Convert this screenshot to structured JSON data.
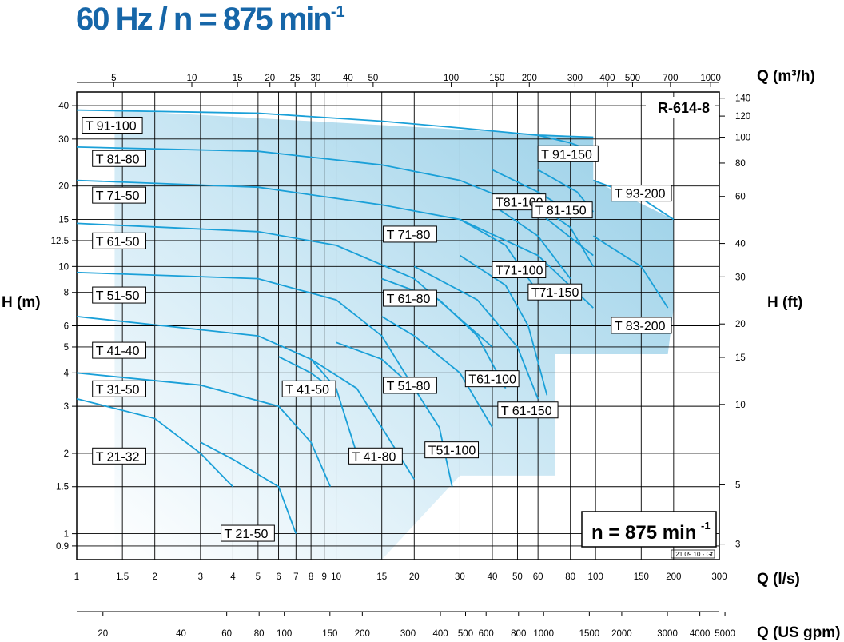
{
  "title": {
    "main": "60 Hz / n = 875 min",
    "sup": "-1"
  },
  "chart_data": {
    "type": "line",
    "code": "R-614-8",
    "speed_box": {
      "main": "n = 875 min",
      "sup": "-1"
    },
    "stamp": "21.09.10 - Gt",
    "x_axis": {
      "label": "Q (l/s)",
      "scale": "log",
      "range": [
        1,
        300
      ],
      "ticks": [
        1,
        1.5,
        2,
        3,
        4,
        5,
        6,
        7,
        8,
        9,
        10,
        15,
        20,
        30,
        40,
        50,
        60,
        80,
        100,
        150,
        200,
        300
      ]
    },
    "x_axis_m3h": {
      "label": "Q (m³/h)",
      "ticks": [
        5,
        10,
        15,
        20,
        25,
        30,
        40,
        50,
        100,
        150,
        200,
        300,
        400,
        500,
        700,
        1000
      ]
    },
    "x_axis_usgpm": {
      "label": "Q (US gpm)",
      "ticks": [
        20,
        40,
        60,
        80,
        100,
        150,
        200,
        300,
        400,
        500,
        600,
        800,
        1000,
        1500,
        2000,
        3000,
        4000,
        5000
      ]
    },
    "y_axis": {
      "label": "H (m)",
      "scale": "log",
      "range": [
        0.8,
        45
      ],
      "ticks": [
        0.9,
        1,
        1.5,
        2,
        3,
        4,
        5,
        6,
        8,
        10,
        12.5,
        15,
        20,
        30,
        40
      ]
    },
    "y_axis_ft": {
      "label": "H (ft)",
      "ticks": [
        3,
        5,
        10,
        15,
        20,
        30,
        40,
        60,
        80,
        100,
        120,
        140
      ]
    },
    "series": [
      {
        "name": "T 91-100",
        "points": [
          [
            1,
            38.5
          ],
          [
            5,
            37.5
          ],
          [
            15,
            35
          ],
          [
            30,
            33
          ],
          [
            60,
            31
          ],
          [
            98,
            30.5
          ]
        ]
      },
      {
        "name": "T 81-80",
        "points": [
          [
            1,
            28
          ],
          [
            5,
            27
          ],
          [
            15,
            24
          ],
          [
            30,
            21
          ],
          [
            60,
            16
          ],
          [
            98,
            11
          ]
        ]
      },
      {
        "name": "T 71-50",
        "points": [
          [
            1,
            21
          ],
          [
            5,
            19.8
          ],
          [
            15,
            17
          ],
          [
            30,
            15
          ],
          [
            60,
            11
          ],
          [
            98,
            7
          ]
        ]
      },
      {
        "name": "T 61-50",
        "points": [
          [
            1,
            14.5
          ],
          [
            5,
            13.5
          ],
          [
            10,
            12
          ],
          [
            20,
            9
          ],
          [
            40,
            5
          ]
        ]
      },
      {
        "name": "T 51-50",
        "points": [
          [
            1,
            9.5
          ],
          [
            5,
            9
          ],
          [
            10,
            7.5
          ],
          [
            15,
            5.5
          ],
          [
            20,
            3.5
          ]
        ]
      },
      {
        "name": "T 41-40",
        "points": [
          [
            1,
            6.5
          ],
          [
            5,
            5.5
          ],
          [
            8,
            4.5
          ],
          [
            10,
            3.5
          ],
          [
            12,
            2
          ]
        ]
      },
      {
        "name": "T 31-50",
        "points": [
          [
            1,
            4
          ],
          [
            3,
            3.6
          ],
          [
            6,
            3
          ],
          [
            8,
            2.2
          ],
          [
            9.5,
            1.5
          ]
        ]
      },
      {
        "name": "T 21-32",
        "points": [
          [
            1,
            3.2
          ],
          [
            2,
            2.7
          ],
          [
            3,
            2
          ],
          [
            4,
            1.5
          ]
        ]
      },
      {
        "name": "T 21-50",
        "points": [
          [
            3,
            2.2
          ],
          [
            4,
            1.9
          ],
          [
            6,
            1.5
          ],
          [
            7,
            1
          ]
        ]
      },
      {
        "name": "T 41-50",
        "points": [
          [
            6,
            4.6
          ],
          [
            8,
            4
          ],
          [
            10,
            3.4
          ]
        ]
      },
      {
        "name": "T 41-80",
        "points": [
          [
            8,
            4.5
          ],
          [
            12,
            3.5
          ],
          [
            15,
            2.5
          ],
          [
            20,
            1.6
          ]
        ]
      },
      {
        "name": "T 51-80",
        "points": [
          [
            10,
            5.2
          ],
          [
            15,
            4.5
          ],
          [
            20,
            3.5
          ],
          [
            25,
            2.5
          ],
          [
            28,
            1.5
          ]
        ]
      },
      {
        "name": "T51-100",
        "points": [
          [
            15,
            6.5
          ],
          [
            20,
            5.5
          ],
          [
            30,
            4
          ],
          [
            40,
            2.5
          ]
        ]
      },
      {
        "name": "T 61-80",
        "points": [
          [
            15,
            9
          ],
          [
            25,
            7.5
          ],
          [
            35,
            5.5
          ],
          [
            45,
            3.5
          ]
        ]
      },
      {
        "name": "T61-100",
        "points": [
          [
            20,
            10
          ],
          [
            35,
            7.5
          ],
          [
            50,
            5
          ],
          [
            60,
            3.2
          ]
        ]
      },
      {
        "name": "T 61-150",
        "points": [
          [
            30,
            11
          ],
          [
            45,
            8.5
          ],
          [
            55,
            6
          ],
          [
            65,
            3.3
          ]
        ]
      },
      {
        "name": "T 71-80",
        "points": [
          [
            30,
            15
          ],
          [
            45,
            12
          ],
          [
            60,
            8
          ]
        ]
      },
      {
        "name": "T71-100",
        "points": [
          [
            40,
            17
          ],
          [
            60,
            13
          ],
          [
            80,
            9
          ]
        ]
      },
      {
        "name": "T71-150",
        "points": [
          [
            60,
            17
          ],
          [
            80,
            14
          ],
          [
            98,
            10
          ]
        ]
      },
      {
        "name": "T81-100",
        "points": [
          [
            40,
            23
          ],
          [
            60,
            19
          ],
          [
            80,
            16
          ]
        ]
      },
      {
        "name": "T 81-150",
        "points": [
          [
            60,
            23
          ],
          [
            85,
            19
          ],
          [
            98,
            16
          ]
        ]
      },
      {
        "name": "T 91-150",
        "points": [
          [
            60,
            31
          ],
          [
            80,
            29
          ],
          [
            98,
            27
          ]
        ]
      },
      {
        "name": "T 93-200",
        "points": [
          [
            98,
            21
          ],
          [
            150,
            18
          ],
          [
            200,
            15
          ]
        ]
      },
      {
        "name": "T 83-200",
        "points": [
          [
            98,
            13
          ],
          [
            150,
            10
          ],
          [
            190,
            7
          ]
        ]
      }
    ]
  }
}
